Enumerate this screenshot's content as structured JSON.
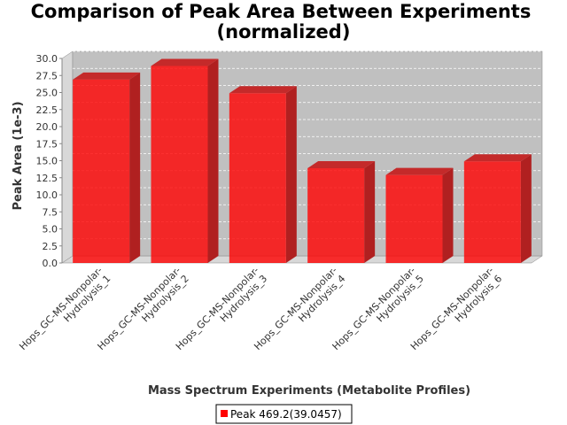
{
  "chart_data": {
    "type": "bar",
    "title_line1": "Comparison of Peak Area Between Experiments",
    "title_line2": "(normalized)",
    "xlabel": "Mass Spectrum Experiments (Metabolite Profiles)",
    "ylabel": "Peak Area (1e-3)",
    "ylim": [
      0,
      30
    ],
    "y_ticks": [
      "0.0",
      "2.5",
      "5.0",
      "7.5",
      "10.0",
      "12.5",
      "15.0",
      "17.5",
      "20.0",
      "22.5",
      "25.0",
      "27.5",
      "30.0"
    ],
    "categories": [
      {
        "line1": "Hops_GC-MS-Nonpolar-",
        "line2": "Hydrolysis_1"
      },
      {
        "line1": "Hops_GC-MS-Nonpolar-",
        "line2": "Hydrolysis_2"
      },
      {
        "line1": "Hops_GC-MS-Nonpolar-",
        "line2": "Hydrolysis_3"
      },
      {
        "line1": "Hops_GC-MS-Nonpolar-",
        "line2": "Hydrolysis_4"
      },
      {
        "line1": "Hops_GC-MS-Nonpolar-",
        "line2": "Hydrolysis_5"
      },
      {
        "line1": "Hops_GC-MS-Nonpolar-",
        "line2": "Hydrolysis_6"
      }
    ],
    "series": [
      {
        "name": "Peak 469.2(39.0457)",
        "values": [
          26.9,
          28.9,
          24.9,
          13.9,
          12.9,
          14.9
        ],
        "color": "#ff0000"
      }
    ],
    "grid": true,
    "legend_position": "bottom",
    "plot_background": "#c0c0c0"
  }
}
